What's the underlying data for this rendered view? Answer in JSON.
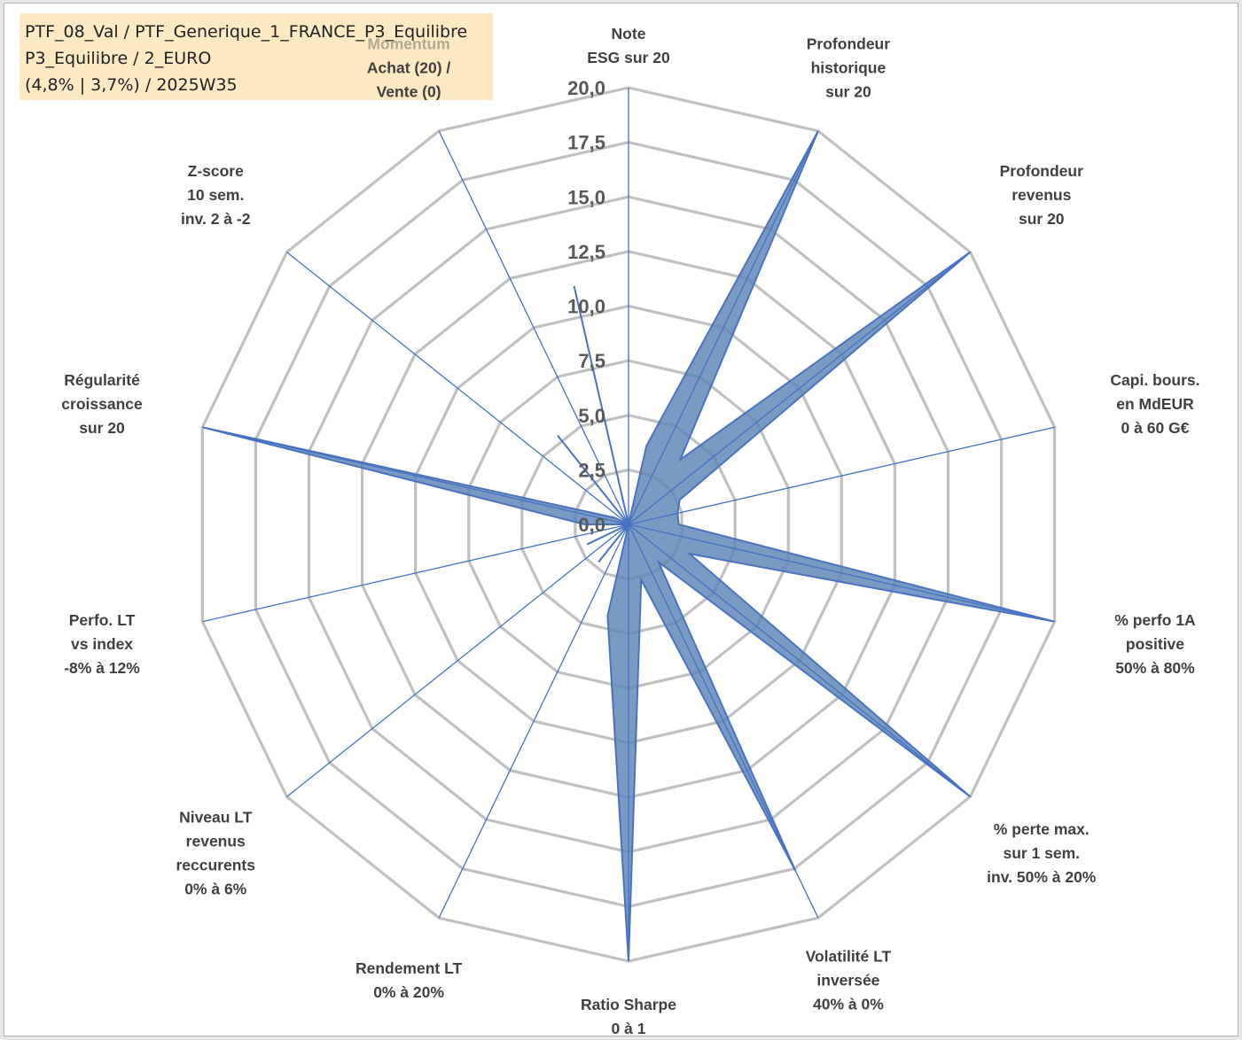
{
  "info_box": {
    "line1": "PTF_08_Val / PTF_Generique_1_FRANCE_P3_Equilibre",
    "line2": "P3_Equilibre / 2_EURO",
    "line3": "(4,8% | 3,7%) / 2025W35"
  },
  "colors": {
    "grid": "#c0c0c0",
    "spoke": "#4472c4",
    "fill": "#5b84b5",
    "fill_stroke": "#4a72c0",
    "tick_text": "#595959",
    "label_text": "#404040",
    "highlight_label": "#b3aa92"
  },
  "chart_data": {
    "type": "radar",
    "range": [
      0,
      20
    ],
    "tick_values": [
      0,
      2.5,
      5,
      7.5,
      10,
      12.5,
      15,
      17.5,
      20
    ],
    "tick_labels": [
      "0,0",
      "2,5",
      "5,0",
      "7,5",
      "10,0",
      "12,5",
      "15,0",
      "17,5",
      "20,0"
    ],
    "gridlines": true,
    "legend": "none",
    "axes": [
      {
        "label_lines": [
          "Note",
          "ESG sur 20"
        ],
        "value": 0
      },
      {
        "label_lines": [
          "Profondeur",
          "historique",
          "sur 20"
        ],
        "value": 20
      },
      {
        "label_lines": [
          "Profondeur",
          "revenus",
          "sur 20"
        ],
        "value": 20
      },
      {
        "label_lines": [
          "Capi. bours.",
          "en MdEUR",
          "0 à 60 G€"
        ],
        "value": 2.3
      },
      {
        "label_lines": [
          "% perfo 1A",
          "positive",
          "50% à 80%"
        ],
        "value": 20
      },
      {
        "label_lines": [
          "% perte max.",
          "sur 1 sem.",
          "inv. 50% à 20%"
        ],
        "value": 20
      },
      {
        "label_lines": [
          "Volatilité LT",
          "inversée",
          "40% à 0%"
        ],
        "value": 17.6
      },
      {
        "label_lines": [
          "Ratio Sharpe",
          "0 à 1"
        ],
        "value": 20
      },
      {
        "label_lines": [
          "Rendement LT",
          "0% à 20%"
        ],
        "value": 0
      },
      {
        "label_lines": [
          "Niveau LT",
          "revenus",
          "reccurents",
          "0% à 6%"
        ],
        "value": 0
      },
      {
        "label_lines": [
          "Perfo. LT",
          "vs index",
          "-8% à 12%"
        ],
        "value": 0
      },
      {
        "label_lines": [
          "Régularité",
          "croissance",
          "sur 20"
        ],
        "value": 20
      },
      {
        "label_lines": [
          "Z-score",
          "10 sem.",
          "inv. 2 à -2"
        ],
        "value": 0
      },
      {
        "label_lines": [
          "Momentum",
          "Achat (20) /",
          "Vente (0)"
        ],
        "value": 0,
        "highlight_first_line": true
      }
    ],
    "inner_points": [
      {
        "value": 3.7
      },
      {
        "value": 3.8
      },
      {
        "value": 2.6
      },
      {
        "value": 2.3
      },
      {
        "value": 3.1
      },
      {
        "value": 2.2
      },
      {
        "value": 2.6
      },
      {
        "value": 4.3
      },
      {
        "value": 2.2
      },
      {
        "value": 2.1
      },
      {
        "value": 2.0
      },
      {
        "value": 0.7
      },
      {
        "value": 5.2
      },
      {
        "value": 11.2
      }
    ]
  }
}
